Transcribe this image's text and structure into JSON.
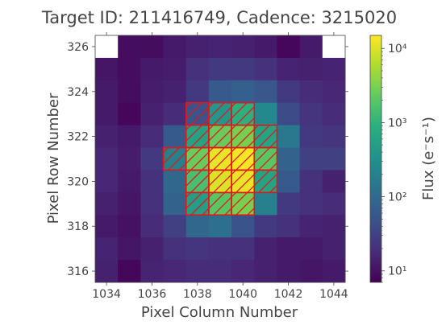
{
  "chart_data": {
    "type": "heatmap",
    "title": "Target ID: 211416749, Cadence: 3215020",
    "xlabel": "Pixel Column Number",
    "ylabel": "Pixel Row Number",
    "colorbar_label": "Flux (e⁻s⁻¹)",
    "colorbar_scale": "log",
    "colorbar_range": [
      7,
      15000
    ],
    "colorbar_ticks": [
      {
        "value": 10,
        "label": "10¹"
      },
      {
        "value": 100,
        "label": "10²"
      },
      {
        "value": 1000,
        "label": "10³"
      },
      {
        "value": 10000,
        "label": "10⁴"
      }
    ],
    "colormap": "viridis",
    "x_ticks": [
      1034,
      1036,
      1038,
      1040,
      1042,
      1044
    ],
    "y_ticks": [
      316,
      318,
      320,
      322,
      324,
      326
    ],
    "column_range": [
      1033.5,
      1044.5
    ],
    "row_range": [
      315.5,
      326.5
    ],
    "columns": [
      1034,
      1035,
      1036,
      1037,
      1038,
      1039,
      1040,
      1041,
      1042,
      1043,
      1044
    ],
    "rows": [
      326,
      325,
      324,
      323,
      322,
      321,
      320,
      319,
      318,
      317,
      316
    ],
    "flux": [
      [
        null,
        9,
        9,
        12,
        14,
        15,
        14,
        12,
        8,
        12,
        null
      ],
      [
        11,
        9,
        12,
        13,
        20,
        25,
        25,
        20,
        15,
        14,
        15
      ],
      [
        12,
        9,
        13,
        14,
        25,
        60,
        70,
        55,
        25,
        18,
        16
      ],
      [
        12,
        8,
        14,
        18,
        50,
        400,
        900,
        250,
        40,
        22,
        18
      ],
      [
        14,
        12,
        18,
        60,
        600,
        2500,
        3000,
        600,
        150,
        25,
        22
      ],
      [
        16,
        13,
        25,
        200,
        2500,
        12000,
        14000,
        2000,
        80,
        30,
        30
      ],
      [
        16,
        12,
        20,
        90,
        1500,
        10000,
        12000,
        600,
        60,
        20,
        14
      ],
      [
        14,
        11,
        20,
        80,
        500,
        2000,
        3000,
        200,
        25,
        20,
        18
      ],
      [
        12,
        10,
        18,
        30,
        90,
        110,
        50,
        25,
        20,
        15,
        14
      ],
      [
        15,
        11,
        14,
        20,
        22,
        20,
        20,
        14,
        12,
        12,
        14
      ],
      [
        14,
        8,
        15,
        16,
        18,
        18,
        16,
        14,
        12,
        11,
        12
      ]
    ],
    "aperture_mask": [
      [
        1038,
        323
      ],
      [
        1039,
        323
      ],
      [
        1040,
        323
      ],
      [
        1038,
        322
      ],
      [
        1039,
        322
      ],
      [
        1040,
        322
      ],
      [
        1041,
        322
      ],
      [
        1037,
        321
      ],
      [
        1038,
        321
      ],
      [
        1039,
        321
      ],
      [
        1040,
        321
      ],
      [
        1041,
        321
      ],
      [
        1038,
        320
      ],
      [
        1039,
        320
      ],
      [
        1040,
        320
      ],
      [
        1041,
        320
      ],
      [
        1038,
        319
      ],
      [
        1039,
        319
      ],
      [
        1040,
        319
      ]
    ],
    "aperture_color": "#e3161c",
    "grid": false
  }
}
